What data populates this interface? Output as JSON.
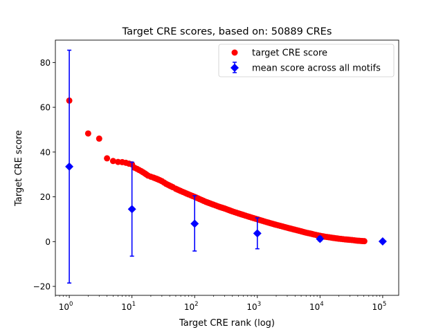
{
  "chart_data": {
    "type": "scatter",
    "title": "Target CRE scores, based on: 50889 CREs",
    "xlabel": "Target CRE rank (log)",
    "ylabel": "Target CRE score",
    "xscale": "log",
    "xlim": [
      0.6,
      180000
    ],
    "ylim": [
      -24,
      90
    ],
    "x_ticks": [
      {
        "value": 1,
        "base": "10",
        "exp": "0"
      },
      {
        "value": 10,
        "base": "10",
        "exp": "1"
      },
      {
        "value": 100,
        "base": "10",
        "exp": "2"
      },
      {
        "value": 1000,
        "base": "10",
        "exp": "3"
      },
      {
        "value": 10000,
        "base": "10",
        "exp": "4"
      },
      {
        "value": 100000,
        "base": "10",
        "exp": "5"
      }
    ],
    "y_ticks": [
      {
        "value": -20,
        "label": "−20"
      },
      {
        "value": 0,
        "label": "0"
      },
      {
        "value": 20,
        "label": "20"
      },
      {
        "value": 40,
        "label": "40"
      },
      {
        "value": 60,
        "label": "60"
      },
      {
        "value": 80,
        "label": "80"
      }
    ],
    "grid": false,
    "legend_position": "top-right",
    "series": [
      {
        "name": "target CRE score",
        "color": "#ff0000",
        "marker": "circle",
        "points": [
          [
            1,
            63
          ],
          [
            2,
            48.3
          ],
          [
            3,
            46
          ],
          [
            4,
            37.2
          ],
          [
            5,
            36
          ],
          [
            6,
            35.6
          ],
          [
            7,
            35.5
          ],
          [
            8,
            35.2
          ],
          [
            9,
            34.8
          ],
          [
            10,
            34.5
          ],
          [
            11,
            33
          ],
          [
            12,
            32.5
          ],
          [
            14,
            31.5
          ],
          [
            16,
            30.5
          ],
          [
            18,
            29.5
          ],
          [
            20,
            29
          ],
          [
            22,
            28.6
          ],
          [
            25,
            28
          ],
          [
            28,
            27.4
          ],
          [
            30,
            27
          ],
          [
            35,
            25.8
          ],
          [
            40,
            25
          ],
          [
            45,
            24.3
          ],
          [
            50,
            23.6
          ],
          [
            60,
            22.6
          ],
          [
            70,
            21.8
          ],
          [
            80,
            21.1
          ],
          [
            100,
            20
          ],
          [
            120,
            19
          ],
          [
            150,
            17.8
          ],
          [
            200,
            16.5
          ],
          [
            250,
            15.5
          ],
          [
            300,
            14.8
          ],
          [
            400,
            13.5
          ],
          [
            500,
            12.6
          ],
          [
            600,
            11.9
          ],
          [
            700,
            11.3
          ],
          [
            800,
            10.8
          ],
          [
            1000,
            10
          ],
          [
            1200,
            9.3
          ],
          [
            1500,
            8.5
          ],
          [
            2000,
            7.5
          ],
          [
            2500,
            6.8
          ],
          [
            3000,
            6.2
          ],
          [
            4000,
            5.3
          ],
          [
            5000,
            4.6
          ],
          [
            6000,
            4
          ],
          [
            7000,
            3.6
          ],
          [
            8000,
            3.2
          ],
          [
            10000,
            2.6
          ],
          [
            12000,
            2.2
          ],
          [
            15000,
            1.8
          ],
          [
            20000,
            1.3
          ],
          [
            25000,
            1
          ],
          [
            30000,
            0.8
          ],
          [
            35000,
            0.6
          ],
          [
            40000,
            0.4
          ],
          [
            45000,
            0.3
          ],
          [
            50889,
            0.2
          ]
        ]
      },
      {
        "name": "mean score across all motifs",
        "color": "#0000ff",
        "marker": "diamond",
        "error_bars": true,
        "points": [
          {
            "x": 1,
            "y": 33.5,
            "low": -18.5,
            "high": 85.5
          },
          {
            "x": 10,
            "y": 14.5,
            "low": -6.5,
            "high": 35.5
          },
          {
            "x": 100,
            "y": 8,
            "low": -4.2,
            "high": 20.5
          },
          {
            "x": 1000,
            "y": 3.7,
            "low": -3.2,
            "high": 10.6
          },
          {
            "x": 10000,
            "y": 1.2,
            "low": 0.3,
            "high": 2.3
          },
          {
            "x": 100000,
            "y": 0.1,
            "low": 0.1,
            "high": 0.1
          }
        ]
      }
    ]
  }
}
